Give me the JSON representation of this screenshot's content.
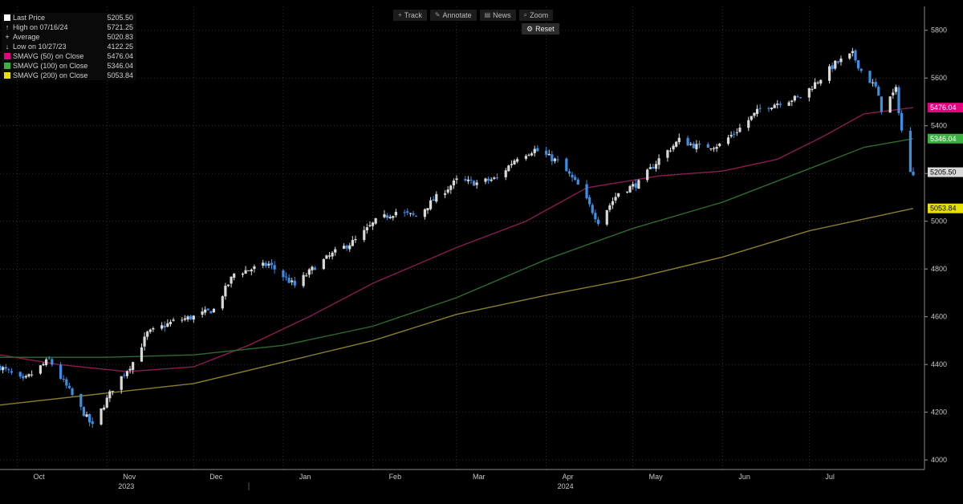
{
  "toolbar": {
    "track_label": "Track",
    "annotate_label": "Annotate",
    "news_label": "News",
    "zoom_label": "Zoom",
    "reset_label": "Reset",
    "track_icon": "crosshair-icon",
    "annotate_icon": "pencil-icon",
    "news_icon": "news-icon",
    "zoom_icon": "magnifier-icon",
    "reset_icon": "gear-icon"
  },
  "legend": {
    "last_price": {
      "label": "Last Price",
      "value": "5205.50",
      "color": "#ffffff"
    },
    "high": {
      "label": "High on 07/16/24",
      "value": "5721.25"
    },
    "average": {
      "label": "Average",
      "value": "5020.83"
    },
    "low": {
      "label": "Low on 10/27/23",
      "value": "4122.25"
    },
    "sma50": {
      "label": "SMAVG (50)  on Close",
      "value": "5476.04",
      "color": "#e6007e"
    },
    "sma100": {
      "label": "SMAVG (100)  on Close",
      "value": "5346.04",
      "color": "#3cb043"
    },
    "sma200": {
      "label": "SMAVG (200)  on Close",
      "value": "5053.84",
      "color": "#e8e000"
    }
  },
  "colors": {
    "background": "#000000",
    "up_candle": "#d9d9d9",
    "down_candle": "#3d8fe6",
    "sma50_line": "#8a1c52",
    "sma100_line": "#2e6b2e",
    "sma200_line": "#8a7f2a",
    "price_tag": "#d9d9d9"
  },
  "chart_data": {
    "type": "candlestick",
    "x_range": [
      "2023-09-25",
      "2024-08-06"
    ],
    "ylim": [
      3960,
      5900
    ],
    "y_ticks": [
      "5800",
      "5600",
      "5400",
      "5200",
      "5000",
      "4800",
      "4600",
      "4400",
      "4200",
      "4000"
    ],
    "y_tick_values": [
      5800,
      5600,
      5400,
      5200,
      5000,
      4800,
      4600,
      4400,
      4200,
      4000
    ],
    "x_month_labels": [
      {
        "date": "2023-10-01",
        "label": "Oct"
      },
      {
        "date": "2023-11-01",
        "label": "Nov"
      },
      {
        "date": "2023-12-01",
        "label": "Dec"
      },
      {
        "date": "2024-01-01",
        "label": "Jan"
      },
      {
        "date": "2024-02-01",
        "label": "Feb"
      },
      {
        "date": "2024-03-01",
        "label": "Mar"
      },
      {
        "date": "2024-04-01",
        "label": "Apr"
      },
      {
        "date": "2024-05-01",
        "label": "May"
      },
      {
        "date": "2024-06-01",
        "label": "Jun"
      },
      {
        "date": "2024-07-01",
        "label": "Jul"
      }
    ],
    "x_year_labels": [
      {
        "date": "2023-11-01",
        "label": "2023"
      },
      {
        "date": "2024-04-01",
        "label": "2024"
      }
    ],
    "price_tags": [
      {
        "label": "5476.04",
        "value": 5476.04,
        "color": "#e6007e",
        "text_color": "#ffffff"
      },
      {
        "label": "5346.04",
        "value": 5346.04,
        "color": "#3cb043",
        "text_color": "#ffffff"
      },
      {
        "label": "5205.50",
        "value": 5205.5,
        "color": "#d9d9d9",
        "text_color": "#000000"
      },
      {
        "label": "5053.84",
        "value": 5053.84,
        "color": "#e8e000",
        "text_color": "#000000"
      }
    ],
    "price_path": [
      [
        "2023-09-25",
        4390
      ],
      [
        "2023-10-03",
        4330
      ],
      [
        "2023-10-12",
        4420
      ],
      [
        "2023-10-20",
        4270
      ],
      [
        "2023-10-27",
        4140
      ],
      [
        "2023-11-03",
        4300
      ],
      [
        "2023-11-10",
        4410
      ],
      [
        "2023-11-15",
        4530
      ],
      [
        "2023-11-24",
        4580
      ],
      [
        "2023-12-01",
        4600
      ],
      [
        "2023-12-08",
        4630
      ],
      [
        "2023-12-15",
        4780
      ],
      [
        "2023-12-27",
        4820
      ],
      [
        "2024-01-05",
        4730
      ],
      [
        "2024-01-12",
        4810
      ],
      [
        "2024-01-19",
        4870
      ],
      [
        "2024-01-26",
        4920
      ],
      [
        "2024-02-02",
        5000
      ],
      [
        "2024-02-09",
        5040
      ],
      [
        "2024-02-16",
        5020
      ],
      [
        "2024-02-23",
        5100
      ],
      [
        "2024-03-01",
        5170
      ],
      [
        "2024-03-08",
        5160
      ],
      [
        "2024-03-15",
        5180
      ],
      [
        "2024-03-22",
        5270
      ],
      [
        "2024-03-28",
        5300
      ],
      [
        "2024-04-05",
        5250
      ],
      [
        "2024-04-12",
        5150
      ],
      [
        "2024-04-19",
        5000
      ],
      [
        "2024-04-26",
        5120
      ],
      [
        "2024-05-03",
        5160
      ],
      [
        "2024-05-10",
        5260
      ],
      [
        "2024-05-17",
        5340
      ],
      [
        "2024-05-24",
        5310
      ],
      [
        "2024-05-31",
        5320
      ],
      [
        "2024-06-07",
        5390
      ],
      [
        "2024-06-14",
        5470
      ],
      [
        "2024-06-21",
        5500
      ],
      [
        "2024-06-28",
        5520
      ],
      [
        "2024-07-05",
        5600
      ],
      [
        "2024-07-10",
        5660
      ],
      [
        "2024-07-16",
        5700
      ],
      [
        "2024-07-19",
        5630
      ],
      [
        "2024-07-24",
        5560
      ],
      [
        "2024-07-26",
        5470
      ],
      [
        "2024-07-31",
        5550
      ],
      [
        "2024-08-02",
        5380
      ],
      [
        "2024-08-05",
        5200
      ],
      [
        "2024-08-06",
        5205.5
      ]
    ],
    "series": [
      {
        "name": "SMAVG (50)  on Close",
        "color": "#8a1c52",
        "points": [
          [
            "2023-09-25",
            4440
          ],
          [
            "2023-10-15",
            4400
          ],
          [
            "2023-11-08",
            4370
          ],
          [
            "2023-12-01",
            4390
          ],
          [
            "2023-12-20",
            4480
          ],
          [
            "2024-01-10",
            4600
          ],
          [
            "2024-02-01",
            4740
          ],
          [
            "2024-03-01",
            4890
          ],
          [
            "2024-03-25",
            5000
          ],
          [
            "2024-04-15",
            5140
          ],
          [
            "2024-05-10",
            5190
          ],
          [
            "2024-06-01",
            5210
          ],
          [
            "2024-06-20",
            5260
          ],
          [
            "2024-07-05",
            5350
          ],
          [
            "2024-07-20",
            5450
          ],
          [
            "2024-08-06",
            5476.04
          ]
        ]
      },
      {
        "name": "SMAVG (100)  on Close",
        "color": "#2e6b2e",
        "points": [
          [
            "2023-09-25",
            4430
          ],
          [
            "2023-11-01",
            4430
          ],
          [
            "2023-12-01",
            4440
          ],
          [
            "2024-01-01",
            4480
          ],
          [
            "2024-02-01",
            4560
          ],
          [
            "2024-03-01",
            4680
          ],
          [
            "2024-04-01",
            4840
          ],
          [
            "2024-05-01",
            4970
          ],
          [
            "2024-06-01",
            5080
          ],
          [
            "2024-07-01",
            5220
          ],
          [
            "2024-07-20",
            5310
          ],
          [
            "2024-08-06",
            5346.04
          ]
        ]
      },
      {
        "name": "SMAVG (200)  on Close",
        "color": "#8a7f2a",
        "points": [
          [
            "2023-09-25",
            4230
          ],
          [
            "2023-11-01",
            4280
          ],
          [
            "2023-12-01",
            4320
          ],
          [
            "2024-01-01",
            4410
          ],
          [
            "2024-02-01",
            4500
          ],
          [
            "2024-03-01",
            4610
          ],
          [
            "2024-04-01",
            4690
          ],
          [
            "2024-05-01",
            4760
          ],
          [
            "2024-06-01",
            4850
          ],
          [
            "2024-07-01",
            4960
          ],
          [
            "2024-08-06",
            5053.84
          ]
        ]
      }
    ]
  }
}
